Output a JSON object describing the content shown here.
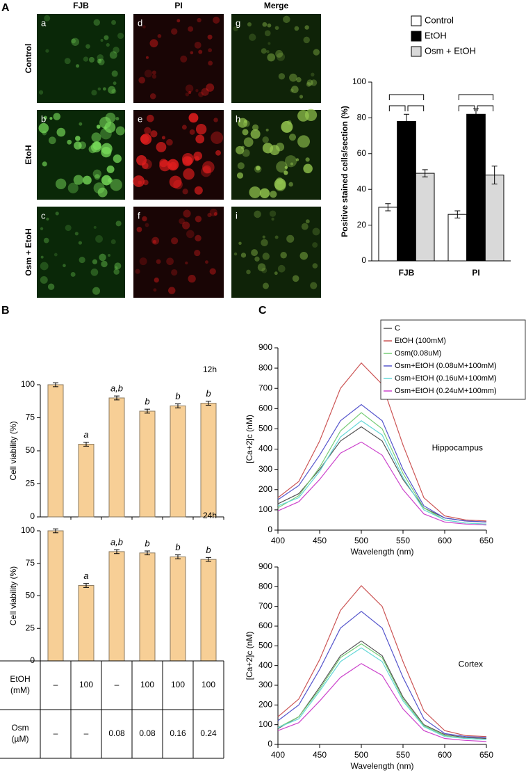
{
  "panel_labels": [
    "A",
    "B",
    "C"
  ],
  "micrographs": {
    "columns": [
      "FJB",
      "PI",
      "Merge"
    ],
    "rows": [
      "Control",
      "EtoH",
      "Osm + EtoH"
    ],
    "letters": [
      [
        "a",
        "d",
        "g"
      ],
      [
        "b",
        "e",
        "h"
      ],
      [
        "c",
        "f",
        "i"
      ]
    ]
  },
  "chart_data": [
    {
      "type": "bar",
      "ylabel": "Positive stained cells/section (%)",
      "categories": [
        "FJB",
        "PI"
      ],
      "series": [
        {
          "name": "Control",
          "color": "#ffffff",
          "values": [
            30,
            26
          ],
          "errors": [
            2,
            2
          ]
        },
        {
          "name": "EtOH",
          "color": "#000000",
          "values": [
            78,
            82
          ],
          "errors": [
            4,
            3
          ]
        },
        {
          "name": "Osm + EtOH",
          "color": "#d9d9d9",
          "values": [
            49,
            48
          ],
          "errors": [
            2,
            5
          ]
        }
      ],
      "ylim": [
        0,
        100
      ],
      "yticks": [
        0,
        20,
        40,
        60,
        80,
        100
      ],
      "legend": "above"
    },
    {
      "type": "bar",
      "annotation": "12h",
      "ylabel": "Cell viability (%)",
      "values": [
        100,
        55,
        90,
        80,
        84,
        86
      ],
      "errors": [
        1.5,
        1.5,
        1.5,
        1.5,
        1.5,
        1.5
      ],
      "sig_labels": [
        null,
        "a",
        "a,b",
        "b",
        "b",
        "b"
      ],
      "color": "#f7cf96",
      "ylim": [
        0,
        100
      ],
      "yticks": [
        0,
        25,
        50,
        75,
        100
      ]
    },
    {
      "type": "bar",
      "annotation": "24h",
      "ylabel": "Cell viability (%)",
      "values": [
        100,
        58,
        84,
        83,
        80,
        78
      ],
      "errors": [
        1.5,
        1.5,
        1.5,
        1.5,
        1.5,
        1.5
      ],
      "sig_labels": [
        null,
        "a",
        "a,b",
        "b",
        "b",
        "b"
      ],
      "color": "#f7cf96",
      "ylim": [
        0,
        100
      ],
      "yticks": [
        0,
        25,
        50,
        75,
        100
      ]
    },
    {
      "type": "line",
      "annotation": "Hippocampus",
      "ylabel": "[Ca+2]c (nM)",
      "xlabel": "Wavelength (nm)",
      "x": [
        400,
        425,
        450,
        475,
        500,
        525,
        550,
        575,
        600,
        625,
        650
      ],
      "series": [
        {
          "name": "C",
          "color": "#555555",
          "values": [
            130,
            180,
            300,
            440,
            510,
            440,
            250,
            110,
            60,
            45,
            40
          ]
        },
        {
          "name": "EtOH (100mM)",
          "color": "#cc5555",
          "values": [
            160,
            240,
            440,
            700,
            825,
            720,
            420,
            160,
            70,
            50,
            45
          ]
        },
        {
          "name": "Osm(0.08uM)",
          "color": "#77cc77",
          "values": [
            110,
            170,
            310,
            490,
            580,
            500,
            280,
            110,
            50,
            35,
            30
          ]
        },
        {
          "name": "Osm+EtOH (0.08uM+100mM)",
          "color": "#5555cc",
          "values": [
            150,
            220,
            370,
            540,
            620,
            540,
            300,
            120,
            60,
            45,
            40
          ]
        },
        {
          "name": "Osm+EtOH (0.16uM+100mM)",
          "color": "#66d8d8",
          "values": [
            120,
            160,
            290,
            460,
            540,
            470,
            260,
            100,
            50,
            35,
            30
          ]
        },
        {
          "name": "Osm+EtOH (0.24uM+100mm)",
          "color": "#cc44cc",
          "values": [
            95,
            140,
            250,
            380,
            435,
            370,
            200,
            80,
            40,
            30,
            25
          ]
        }
      ],
      "xlim": [
        400,
        650
      ],
      "ylim": [
        0,
        900
      ],
      "xticks": [
        400,
        450,
        500,
        550,
        600,
        650
      ],
      "yticks": [
        0,
        100,
        200,
        300,
        400,
        500,
        600,
        700,
        800,
        900
      ],
      "legend": "upper right"
    },
    {
      "type": "line",
      "annotation": "Cortex",
      "ylabel": "[Ca+2]c (nM)",
      "xlabel": "Wavelength (nm)",
      "x": [
        400,
        425,
        450,
        475,
        500,
        525,
        550,
        575,
        600,
        625,
        650
      ],
      "series": [
        {
          "color": "#555555",
          "values": [
            80,
            140,
            290,
            450,
            525,
            450,
            240,
            100,
            50,
            35,
            30
          ]
        },
        {
          "color": "#cc5555",
          "values": [
            140,
            230,
            430,
            680,
            805,
            700,
            420,
            170,
            70,
            45,
            40
          ]
        },
        {
          "color": "#77cc77",
          "values": [
            85,
            140,
            280,
            440,
            510,
            440,
            230,
            95,
            45,
            30,
            25
          ]
        },
        {
          "color": "#5555cc",
          "values": [
            120,
            200,
            380,
            590,
            675,
            590,
            340,
            130,
            55,
            40,
            35
          ]
        },
        {
          "color": "#66d8d8",
          "values": [
            85,
            130,
            270,
            420,
            490,
            420,
            220,
            90,
            40,
            30,
            25
          ]
        },
        {
          "color": "#cc44cc",
          "values": [
            70,
            110,
            220,
            340,
            410,
            350,
            180,
            70,
            30,
            20,
            15
          ]
        }
      ],
      "xlim": [
        400,
        650
      ],
      "ylim": [
        0,
        900
      ],
      "xticks": [
        400,
        450,
        500,
        550,
        600,
        650
      ],
      "yticks": [
        0,
        100,
        200,
        300,
        400,
        500,
        600,
        700,
        800,
        900
      ]
    }
  ],
  "table": {
    "rows": [
      {
        "label": [
          "EtOH",
          "(mM)"
        ],
        "cells": [
          "–",
          "100",
          "–",
          "100",
          "100",
          "100"
        ]
      },
      {
        "label": [
          "Osm",
          "(µM)"
        ],
        "cells": [
          "–",
          "–",
          "0.08",
          "0.08",
          "0.16",
          "0.24"
        ]
      }
    ]
  }
}
